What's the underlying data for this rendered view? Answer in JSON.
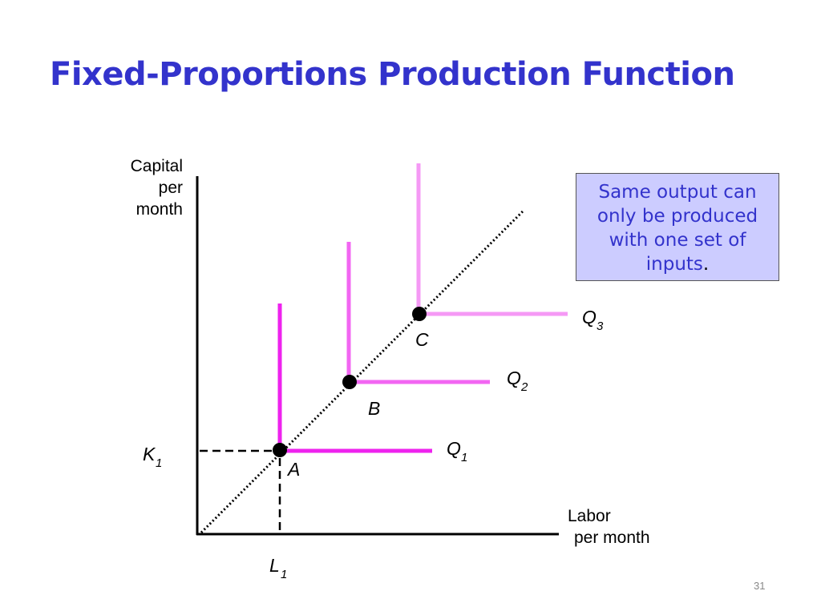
{
  "title": "Fixed-Proportions Production Function",
  "y_axis_label": [
    "Capital",
    "per",
    "month"
  ],
  "x_axis_label": [
    "Labor",
    "per month"
  ],
  "callout": {
    "text": "Same output can only be produced with one set of inputs",
    "trailing": "."
  },
  "page_number": "31",
  "isoquants": [
    {
      "name": "Q",
      "sub": "1",
      "point": "A",
      "color": "#ee22ee"
    },
    {
      "name": "Q",
      "sub": "2",
      "point": "B",
      "color": "#f266f2"
    },
    {
      "name": "Q",
      "sub": "3",
      "point": "C",
      "color": "#f599f5"
    }
  ],
  "axis_markers": {
    "capital": {
      "name": "K",
      "sub": "1"
    },
    "labor": {
      "name": "L",
      "sub": "1"
    }
  }
}
